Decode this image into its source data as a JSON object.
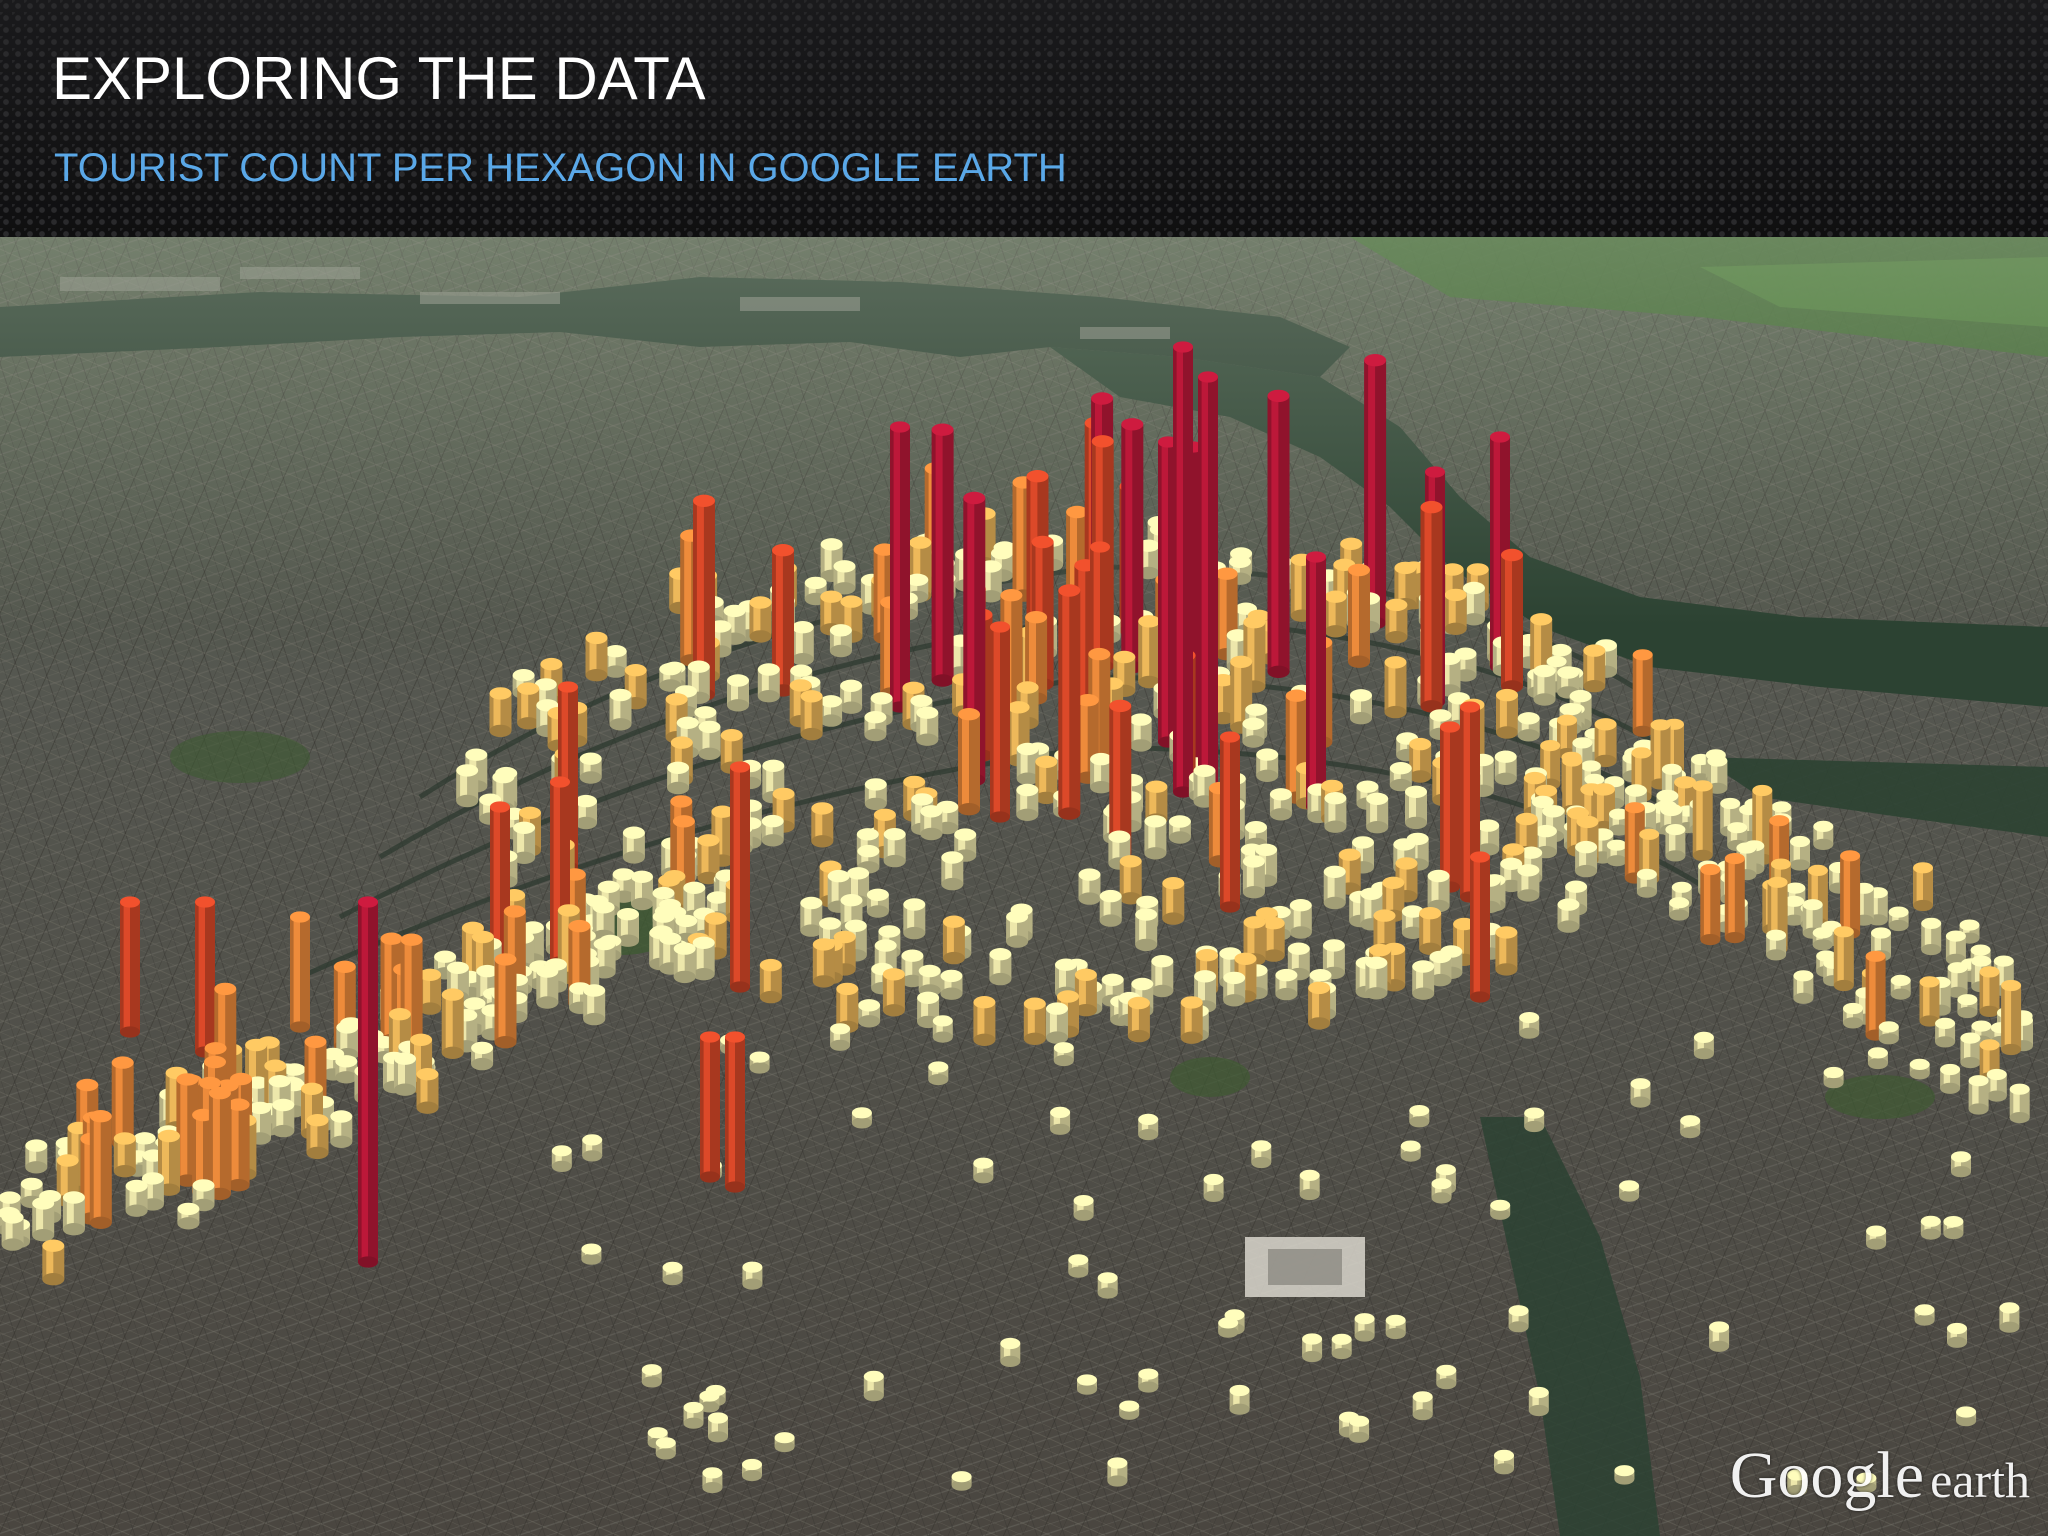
{
  "slide": {
    "title": "EXPLORING THE DATA",
    "subtitle": "TOURIST COUNT PER HEXAGON IN GOOGLE EARTH"
  },
  "map": {
    "logo_primary": "Google",
    "logo_secondary": "earth",
    "colors": {
      "low": "#e8e2a8",
      "mid_low": "#e8b458",
      "mid": "#e8883a",
      "high": "#d84828",
      "peak": "#b81838",
      "water": "#2d4030",
      "urban": "#5a5a52"
    }
  }
}
